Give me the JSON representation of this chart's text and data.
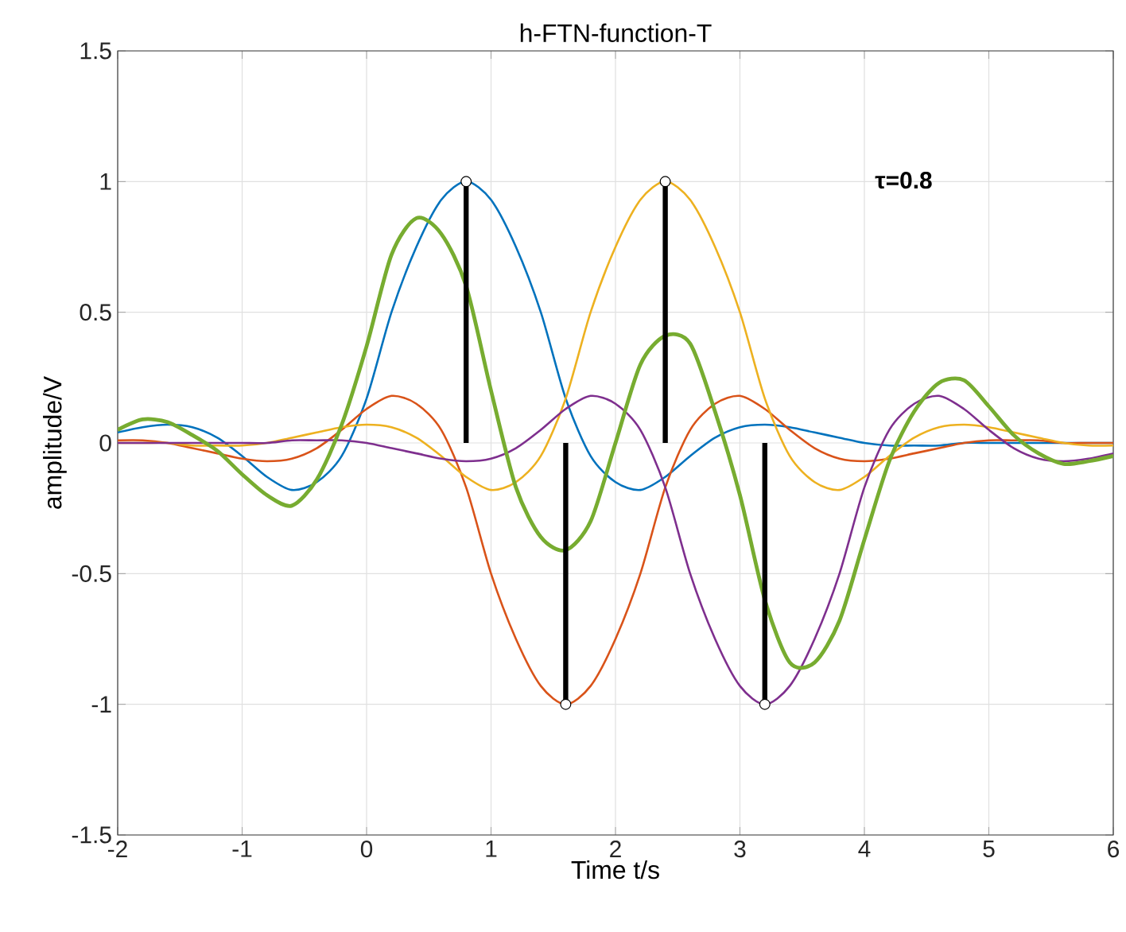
{
  "chart_data": {
    "type": "line",
    "title": "h-FTN-function-T",
    "xlabel": "Time t/s",
    "ylabel": "amplitude/V",
    "x": [
      -2,
      -1.8,
      -1.6,
      -1.4,
      -1.2,
      -1,
      -0.8,
      -0.6,
      -0.4,
      -0.2,
      0,
      0.2,
      0.4,
      0.6,
      0.8,
      1,
      1.2,
      1.4,
      1.6,
      1.8,
      2,
      2.2,
      2.4,
      2.6,
      2.8,
      3,
      3.2,
      3.4,
      3.6,
      3.8,
      4,
      4.2,
      4.4,
      4.6,
      4.8,
      5,
      5.2,
      5.4,
      5.6,
      5.8,
      6
    ],
    "series": [
      {
        "color": "#0072bd",
        "values": [
          0.04,
          0.06,
          0.07,
          0.06,
          0.02,
          -0.05,
          -0.13,
          -0.18,
          -0.15,
          -0.05,
          0.17,
          0.5,
          0.75,
          0.93,
          1,
          0.93,
          0.75,
          0.5,
          0.17,
          -0.05,
          -0.15,
          -0.18,
          -0.13,
          -0.05,
          0.02,
          0.06,
          0.07,
          0.06,
          0.04,
          0.02,
          0,
          -0.01,
          -0.01,
          -0.01,
          0,
          0,
          0,
          0,
          0,
          0,
          0
        ]
      },
      {
        "color": "#d95319",
        "values": [
          0.01,
          0.01,
          0,
          -0.02,
          -0.04,
          -0.06,
          -0.07,
          -0.06,
          -0.02,
          0.05,
          0.13,
          0.18,
          0.15,
          0.05,
          -0.17,
          -0.5,
          -0.75,
          -0.93,
          -1,
          -0.93,
          -0.75,
          -0.5,
          -0.17,
          0.05,
          0.15,
          0.18,
          0.13,
          0.05,
          -0.02,
          -0.06,
          -0.07,
          -0.06,
          -0.04,
          -0.02,
          0,
          0.01,
          0.01,
          0.01,
          0,
          0,
          0
        ]
      },
      {
        "color": "#edb120",
        "values": [
          0,
          0,
          0,
          -0.01,
          -0.01,
          -0.01,
          0,
          0.02,
          0.04,
          0.06,
          0.07,
          0.06,
          0.02,
          -0.05,
          -0.13,
          -0.18,
          -0.15,
          -0.05,
          0.17,
          0.5,
          0.75,
          0.93,
          1,
          0.93,
          0.75,
          0.5,
          0.17,
          -0.05,
          -0.15,
          -0.18,
          -0.13,
          -0.05,
          0.02,
          0.06,
          0.07,
          0.06,
          0.04,
          0.02,
          0,
          -0.01,
          -0.01
        ]
      },
      {
        "color": "#7e2f8e",
        "values": [
          0,
          0,
          0,
          0,
          0,
          0,
          0,
          0.01,
          0.01,
          0.01,
          0,
          -0.02,
          -0.04,
          -0.06,
          -0.07,
          -0.06,
          -0.02,
          0.05,
          0.13,
          0.18,
          0.15,
          0.05,
          -0.17,
          -0.5,
          -0.75,
          -0.93,
          -1,
          -0.93,
          -0.75,
          -0.5,
          -0.17,
          0.05,
          0.15,
          0.18,
          0.13,
          0.05,
          -0.02,
          -0.06,
          -0.07,
          -0.06,
          -0.04
        ]
      },
      {
        "color": "#77ac30",
        "values": [
          0.05,
          0.09,
          0.08,
          0.03,
          -0.03,
          -0.12,
          -0.2,
          -0.24,
          -0.14,
          0.07,
          0.37,
          0.72,
          0.86,
          0.8,
          0.6,
          0.2,
          -0.17,
          -0.36,
          -0.41,
          -0.3,
          0,
          0.3,
          0.41,
          0.38,
          0.12,
          -0.2,
          -0.6,
          -0.84,
          -0.84,
          -0.68,
          -0.37,
          -0.07,
          0.12,
          0.23,
          0.24,
          0.14,
          0.03,
          -0.04,
          -0.08,
          -0.07,
          -0.05
        ]
      },
      {
        "type": "lollipop",
        "color": "#000000",
        "marker": "circle",
        "x": [
          0.8,
          1.6,
          2.4,
          3.2
        ],
        "values": [
          1,
          -1,
          1,
          -1
        ]
      }
    ],
    "xlim": [
      -2,
      6
    ],
    "ylim": [
      -1.5,
      1.5
    ],
    "xticks": [
      -2,
      -1,
      0,
      1,
      2,
      3,
      4,
      5,
      6
    ],
    "yticks": [
      -1.5,
      -1,
      -0.5,
      0,
      0.5,
      1,
      1.5
    ],
    "grid": true,
    "annotations": [
      "τ=0.8"
    ]
  }
}
